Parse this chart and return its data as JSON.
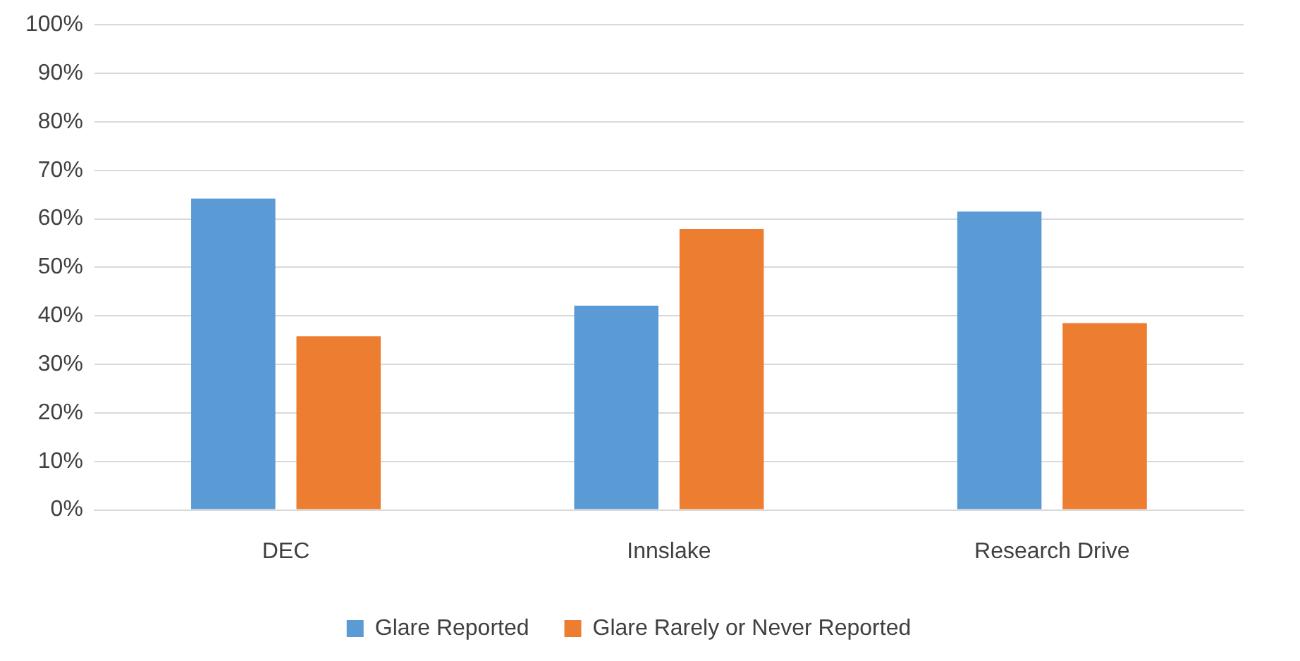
{
  "chart_data": {
    "type": "bar",
    "categories": [
      "DEC",
      "Innslake",
      "Research Drive"
    ],
    "series": [
      {
        "name": "Glare Reported",
        "color": "#5b9bd5",
        "values": [
          64.2,
          42.1,
          61.5
        ]
      },
      {
        "name": "Glare Rarely or Never Reported",
        "color": "#ed7d31",
        "values": [
          35.8,
          57.9,
          38.5
        ]
      }
    ],
    "ylim": [
      0,
      100
    ],
    "yticks": [
      {
        "value": 0,
        "label": "0%"
      },
      {
        "value": 10,
        "label": "10%"
      },
      {
        "value": 20,
        "label": "20%"
      },
      {
        "value": 30,
        "label": "30%"
      },
      {
        "value": 40,
        "label": "40%"
      },
      {
        "value": 50,
        "label": "50%"
      },
      {
        "value": 60,
        "label": "60%"
      },
      {
        "value": 70,
        "label": "70%"
      },
      {
        "value": 80,
        "label": "80%"
      },
      {
        "value": 90,
        "label": "90%"
      },
      {
        "value": 100,
        "label": "100%"
      }
    ],
    "grid": "y",
    "legend": "bottom"
  }
}
